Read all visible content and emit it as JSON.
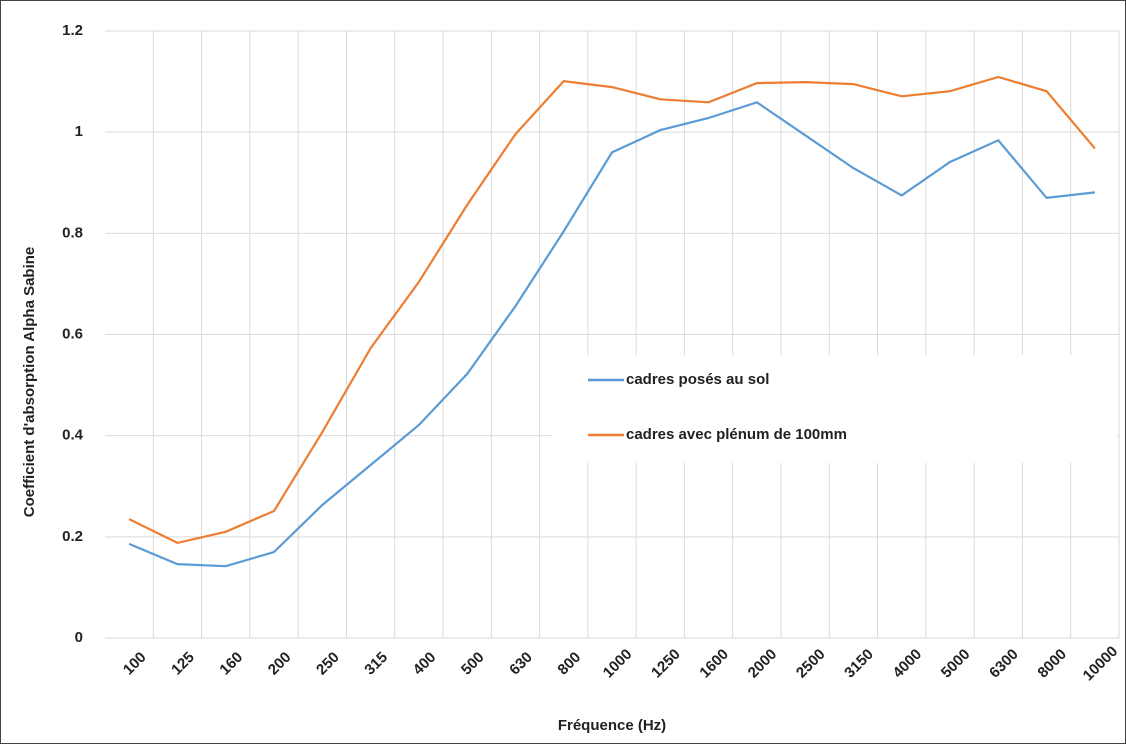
{
  "chart_data": {
    "type": "line",
    "x_label": "Fréquence (Hz)",
    "y_label": "Coefficient d'absorption Alpha Sabine",
    "categories": [
      "100",
      "125",
      "160",
      "200",
      "250",
      "315",
      "400",
      "500",
      "630",
      "800",
      "1000",
      "1250",
      "1600",
      "2000",
      "2500",
      "3150",
      "4000",
      "5000",
      "6300",
      "8000",
      "10000"
    ],
    "series": [
      {
        "name": "cadres posés au sol",
        "color": "#5b9bd5",
        "values": [
          0.186,
          0.146,
          0.142,
          0.17,
          0.263,
          0.342,
          0.421,
          0.522,
          0.656,
          0.804,
          0.96,
          1.004,
          1.028,
          1.059,
          0.994,
          0.929,
          0.875,
          0.941,
          0.984,
          0.87,
          0.881
        ]
      },
      {
        "name": "cadres avec plénum de 100mm",
        "color": "#ed7d31",
        "values": [
          0.235,
          0.188,
          0.21,
          0.251,
          0.407,
          0.573,
          0.704,
          0.856,
          0.996,
          1.101,
          1.089,
          1.065,
          1.059,
          1.097,
          1.099,
          1.095,
          1.071,
          1.081,
          1.109,
          1.081,
          0.968
        ]
      }
    ],
    "ylim": [
      0,
      1.2
    ],
    "yticks": [
      0,
      0.2,
      0.4,
      0.6,
      0.8,
      1,
      1.2
    ],
    "grid": true
  }
}
